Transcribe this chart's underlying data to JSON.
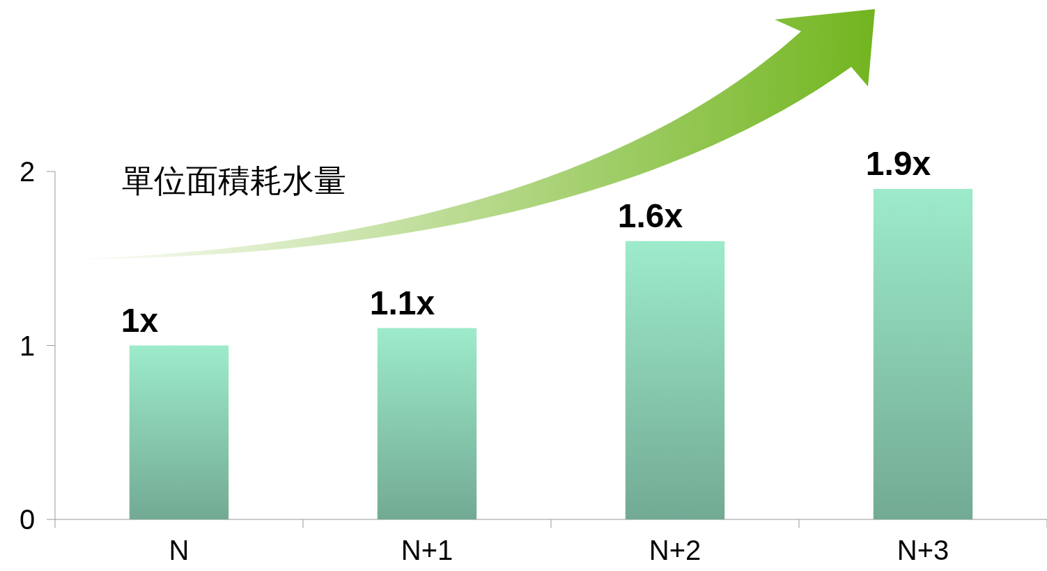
{
  "chart_data": {
    "type": "bar",
    "title": "單位面積耗水量",
    "categories": [
      "N",
      "N+1",
      "N+2",
      "N+3"
    ],
    "values": [
      1,
      1.1,
      1.6,
      1.9
    ],
    "value_labels": [
      "1x",
      "1.1x",
      "1.6x",
      "1.9x"
    ],
    "color": "#8dd3b6",
    "ylim": [
      0,
      2
    ],
    "yticks": [
      0,
      1,
      2
    ]
  }
}
